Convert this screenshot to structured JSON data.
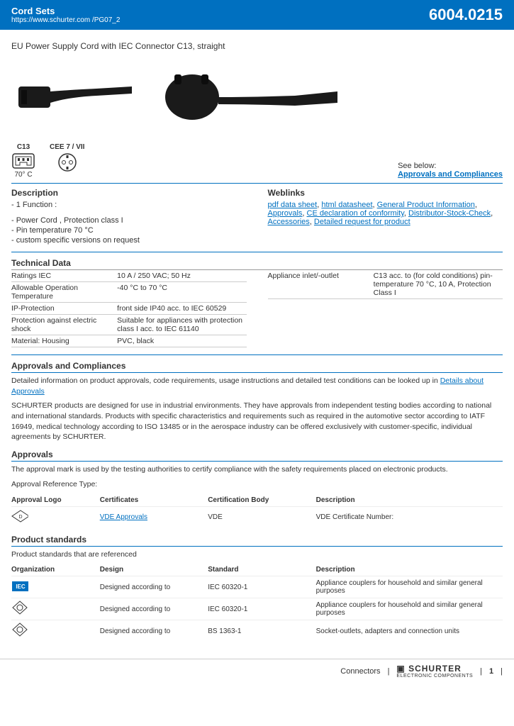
{
  "header": {
    "category": "Cord Sets",
    "url": "https://www.schurter.com /PG07_2",
    "part_number": "6004.0215"
  },
  "subtitle": "EU Power Supply Cord with IEC Connector C13, straight",
  "connector_icons": {
    "left": {
      "label": "C13",
      "sublabel": "70° C"
    },
    "right": {
      "label": "CEE 7 / VII"
    },
    "see_below": "See below:",
    "approvals_link": "Approvals and Compliances"
  },
  "description": {
    "title": "Description",
    "function_label": "- 1 Function :",
    "bullets": [
      "- Power Cord , Protection class I",
      "- Pin temperature 70 °C",
      "- custom specific versions on request"
    ]
  },
  "weblinks": {
    "title": "Weblinks",
    "links": [
      "pdf data sheet",
      "html datasheet",
      "General Product Information",
      "Approvals",
      "CE declaration of conformity",
      "Distributor-Stock-Check",
      "Accessories",
      "Detailed request for product"
    ]
  },
  "technical": {
    "title": "Technical Data",
    "left": [
      {
        "k": "Ratings IEC",
        "v": "10 A / 250 VAC; 50 Hz"
      },
      {
        "k": "Allowable Operation Temperature",
        "v": "-40 °C to 70 °C"
      },
      {
        "k": "IP-Protection",
        "v": "front side IP40 acc. to IEC 60529"
      },
      {
        "k": "Protection against electric shock",
        "v": "Suitable for appliances with protection class I acc. to IEC 61140"
      },
      {
        "k": "Material: Housing",
        "v": "PVC, black"
      }
    ],
    "right": [
      {
        "k": "Appliance inlet/-outlet",
        "v": "C13 acc. to (for cold conditions) pin-temperature 70 °C, 10 A, Protection Class I"
      }
    ]
  },
  "approvals_compliances": {
    "title": "Approvals and Compliances",
    "intro": "Detailed information on product approvals, code requirements, usage instructions and detailed test conditions can be looked up in ",
    "intro_link": "Details about Approvals",
    "body": "SCHURTER products are designed for use in industrial environments. They have approvals from independent testing bodies according to national and international standards. Products with specific characteristics and requirements such as required in the automotive sector according to IATF 16949, medical technology according to ISO 13485 or in the aerospace industry can be offered exclusively with customer-specific, individual agreements by SCHURTER."
  },
  "approvals": {
    "title": "Approvals",
    "intro": "The approval mark is used by the testing authorities to certify compliance with the safety requirements placed on electronic products.",
    "ref_type": "Approval Reference Type:",
    "headers": [
      "Approval Logo",
      "Certificates",
      "Certification Body",
      "Description"
    ],
    "rows": [
      {
        "logo": "vde",
        "cert": "VDE Approvals",
        "body": "VDE",
        "desc": "VDE Certificate Number:"
      }
    ]
  },
  "product_standards": {
    "title": "Product standards",
    "intro": "Product standards that are referenced",
    "headers": [
      "Organization",
      "Design",
      "Standard",
      "Description"
    ],
    "rows": [
      {
        "org": "IEC",
        "design": "Designed according to",
        "std": "IEC 60320-1",
        "desc": "Appliance couplers for household and similar general purposes"
      },
      {
        "org": "VDE2",
        "design": "Designed according to",
        "std": "IEC 60320-1",
        "desc": "Appliance couplers for household and similar general purposes"
      },
      {
        "org": "VDE2",
        "design": "Designed according to",
        "std": "BS 1363-1",
        "desc": "Socket-outlets, adapters and connection units"
      }
    ]
  },
  "footer": {
    "category": "Connectors",
    "brand": "SCHURTER",
    "brand_sub": "ELECTRONIC COMPONENTS",
    "page": "1"
  }
}
